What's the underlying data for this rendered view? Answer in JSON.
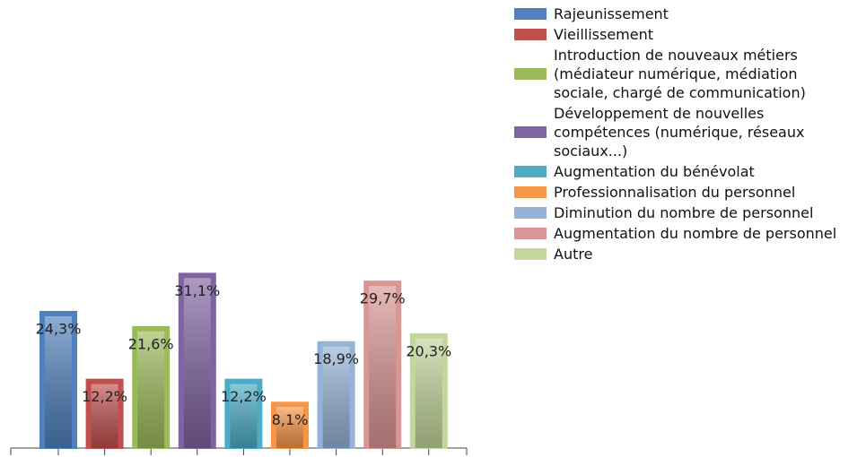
{
  "chart_data": {
    "type": "bar",
    "series": [
      {
        "name": "Rajeunissement",
        "color": "#4f81bd",
        "values": [
          24.3
        ],
        "value_labels": [
          "24,3%"
        ]
      },
      {
        "name": "Vieillissement",
        "color": "#c0504d",
        "values": [
          12.2
        ],
        "value_labels": [
          "12,2%"
        ]
      },
      {
        "name": "Introduction de nouveaux métiers (médiateur numérique, médiation sociale, chargé de communication)",
        "color": "#9bbb59",
        "values": [
          21.6
        ],
        "value_labels": [
          "21,6%"
        ]
      },
      {
        "name": "Développement de nouvelles compétences (numérique, réseaux sociaux...)",
        "color": "#8064a2",
        "values": [
          31.1
        ],
        "value_labels": [
          "31,1%"
        ]
      },
      {
        "name": "Augmentation du bénévolat",
        "color": "#4bacc6",
        "values": [
          12.2
        ],
        "value_labels": [
          "12,2%"
        ]
      },
      {
        "name": "Professionnalisation du personnel",
        "color": "#f79646",
        "values": [
          8.1
        ],
        "value_labels": [
          "8,1%"
        ]
      },
      {
        "name": "Diminution du nombre de personnel",
        "color": "#95b3d7",
        "values": [
          18.9
        ],
        "value_labels": [
          "18,9%"
        ]
      },
      {
        "name": "Augmentation du nombre de personnel",
        "color": "#d99694",
        "values": [
          29.7
        ],
        "value_labels": [
          "29,7%"
        ]
      },
      {
        "name": "Autre",
        "color": "#c3d69b",
        "values": [
          20.3
        ],
        "value_labels": [
          "20,3%"
        ]
      }
    ],
    "ylim": [
      0,
      35
    ]
  }
}
